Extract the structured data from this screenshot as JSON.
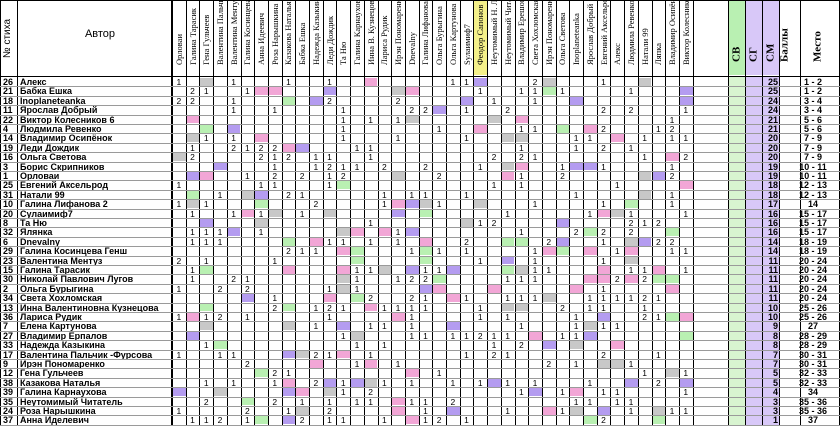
{
  "header": {
    "num_label": "№ стиха",
    "author_label": "Автор",
    "judges": [
      "Орловаи",
      "Галина Тарасик",
      "Гена Гульчеев",
      "Валентина Пальчик -Ф",
      "Валентина Ментуз",
      "Галина Косинцева Г",
      "Анна Идеевич",
      "Роза Нарышкина",
      "Казакова Наталья",
      "Бабка Ешка",
      "Надежда Казыкина",
      "Леди Дождик",
      "Та Ню",
      "Галина Карнаухова",
      "Инна В. Кузнецова",
      "Лариса Рудик",
      "Ирэн Пономаренко",
      "Dnevalny",
      "Галина Лифанова",
      "Ольга Бурыгина",
      "Ольга Картунова",
      "Sулаимиф7",
      "Феодор Сапонов",
      "Неутомимый Н. Лугов",
      "Неутомимый Читатель",
      "Владимир Ерешов",
      "Света Хохломская",
      "Ирэн Пономаренко",
      "Ольга Светова",
      "Inoplaneteanka",
      "Ярослав Добрый",
      "Евгений Аксельрод",
      "Алекс",
      "Людмила Ревенко",
      "Натали 99",
      "Ляпка",
      "Владимир Осипёнок",
      "Виктор Колесников"
    ],
    "score_labels": [
      "СВ",
      "СГ",
      "СМ"
    ],
    "total_label": "Баллы",
    "place_label": "Место"
  },
  "rows": [
    {
      "num": "26",
      "author": "Алекс",
      "total": "25",
      "place": "1 - 2"
    },
    {
      "num": "21",
      "author": "Бабка Ешка",
      "total": "25",
      "place": "1 - 2"
    },
    {
      "num": "18",
      "author": "Inoplaneteanka",
      "total": "24",
      "place": "3 - 4"
    },
    {
      "num": "11",
      "author": "Ярослав Добрый",
      "total": "24",
      "place": "3 - 4"
    },
    {
      "num": "22",
      "author": "Виктор Колесников 6",
      "total": "21",
      "place": "5 - 6"
    },
    {
      "num": "4",
      "author": "Людмила Ревенко",
      "total": "21",
      "place": "5 - 6"
    },
    {
      "num": "14",
      "author": "Владимир Осипёнок",
      "total": "20",
      "place": "7 - 9"
    },
    {
      "num": "19",
      "author": "Леди Дождик",
      "total": "20",
      "place": "7 - 9"
    },
    {
      "num": "16",
      "author": "Ольга Светова",
      "total": "20",
      "place": "7 - 9"
    },
    {
      "num": "3",
      "author": "Борис Скрипников",
      "total": "19",
      "place": "10 - 11"
    },
    {
      "num": "1",
      "author": "Орловаи",
      "total": "19",
      "place": "10 - 11"
    },
    {
      "num": "25",
      "author": "Евгений Аксельрод",
      "total": "18",
      "place": "12 - 13"
    },
    {
      "num": "31",
      "author": "Натали 99",
      "total": "18",
      "place": "12 - 13"
    },
    {
      "num": "10",
      "author": "Галина Лифанова 2",
      "total": "17",
      "place": "14"
    },
    {
      "num": "20",
      "author": "Сулаимиф7",
      "total": "16",
      "place": "15 - 17"
    },
    {
      "num": "8",
      "author": "Та Ню",
      "total": "16",
      "place": "15 - 17"
    },
    {
      "num": "32",
      "author": "Ялянка",
      "total": "16",
      "place": "15 - 17"
    },
    {
      "num": "6",
      "author": "Dnevalny",
      "total": "14",
      "place": "18 - 19"
    },
    {
      "num": "29",
      "author": "Галина Косинцева Генш",
      "total": "14",
      "place": "18 - 19"
    },
    {
      "num": "23",
      "author": "Валентина Ментуз",
      "total": "11",
      "place": "20 - 24"
    },
    {
      "num": "15",
      "author": "Галина Тарасик",
      "total": "11",
      "place": "20 - 24"
    },
    {
      "num": "30",
      "author": "Николай Павлович Лугов",
      "total": "11",
      "place": "20 - 24"
    },
    {
      "num": "2",
      "author": "Ольга Бурыгина",
      "total": "11",
      "place": "20 - 24"
    },
    {
      "num": "34",
      "author": "Света Хохломская",
      "total": "11",
      "place": "20 - 24"
    },
    {
      "num": "13",
      "author": "Инна Валентиновна Кузнецова",
      "total": "10",
      "place": "25 - 26"
    },
    {
      "num": "36",
      "author": "Лариса Рудик",
      "total": "10",
      "place": "25 - 26"
    },
    {
      "num": "7",
      "author": "Елена Картунова",
      "total": "9",
      "place": "27"
    },
    {
      "num": "27",
      "author": "Владимир Ерпалов",
      "total": "8",
      "place": "28 - 29"
    },
    {
      "num": "33",
      "author": "Надежда Казыкина",
      "total": "8",
      "place": "28 - 29"
    },
    {
      "num": "17",
      "author": "Валентина Пальчик -Фурсова",
      "total": "7",
      "place": "30 - 31"
    },
    {
      "num": "9",
      "author": "Ирэн Пономаренко",
      "total": "7",
      "place": "30 - 31"
    },
    {
      "num": "12",
      "author": "Гена Гульчеев",
      "total": "5",
      "place": "32 - 33"
    },
    {
      "num": "38",
      "author": "Казакова Наталья",
      "total": "5",
      "place": "32 - 33"
    },
    {
      "num": "39",
      "author": "Галина Карнаухова",
      "total": "4",
      "place": "34"
    },
    {
      "num": "35",
      "author": "Неутомимый Читатель",
      "total": "3",
      "place": "35 - 36"
    },
    {
      "num": "24",
      "author": "Роза Нарышкина",
      "total": "3",
      "place": "35 - 36"
    },
    {
      "num": "37",
      "author": "Анна Иделевич",
      "total": "1",
      "place": "37"
    }
  ],
  "colors": {
    "pink": "#f2a6d6",
    "purple": "#b49cf0",
    "green": "#b9f0b2",
    "yellow": "#f4f08a",
    "grey": "#c8c8c8",
    "light_purple": "#d8c8f8",
    "light_green": "#d8f4d0"
  }
}
